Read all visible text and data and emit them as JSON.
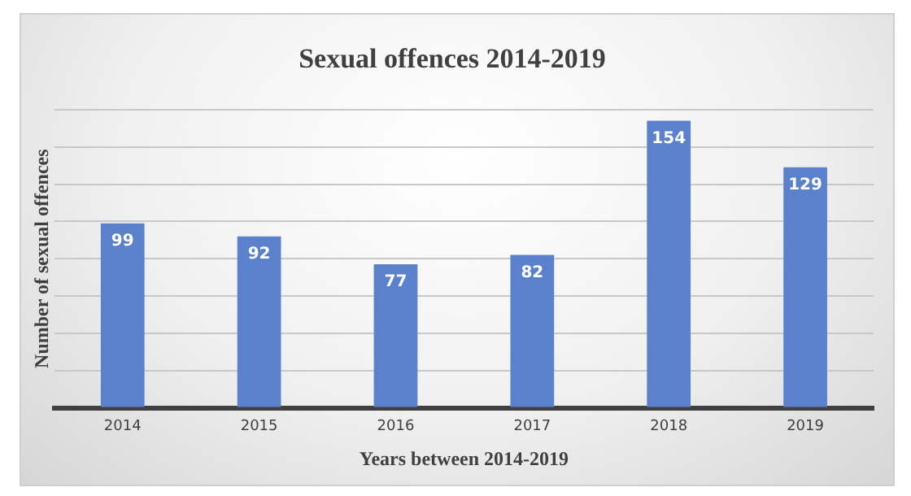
{
  "chart_data": {
    "type": "bar",
    "title": "Sexual offences 2014-2019",
    "xlabel": "Years between 2014-2019",
    "ylabel": "Number of sexual offences",
    "categories": [
      "2014",
      "2015",
      "2016",
      "2017",
      "2018",
      "2019"
    ],
    "values": [
      99,
      92,
      77,
      82,
      154,
      129
    ],
    "color": "#5b81cc",
    "ylim": [
      0,
      160
    ],
    "yticks": [
      {
        "value": 0,
        "label": null
      },
      {
        "value": 20,
        "label": null
      },
      {
        "value": 40,
        "label": null
      },
      {
        "value": 60,
        "label": null
      },
      {
        "value": 80,
        "label": null
      },
      {
        "value": 100,
        "label": null
      },
      {
        "value": 120,
        "label": null
      },
      {
        "value": 140,
        "label": null
      },
      {
        "value": 160,
        "label": null
      }
    ],
    "tick_labels": "x",
    "grid": "y",
    "legend": false,
    "data_labels": true
  }
}
